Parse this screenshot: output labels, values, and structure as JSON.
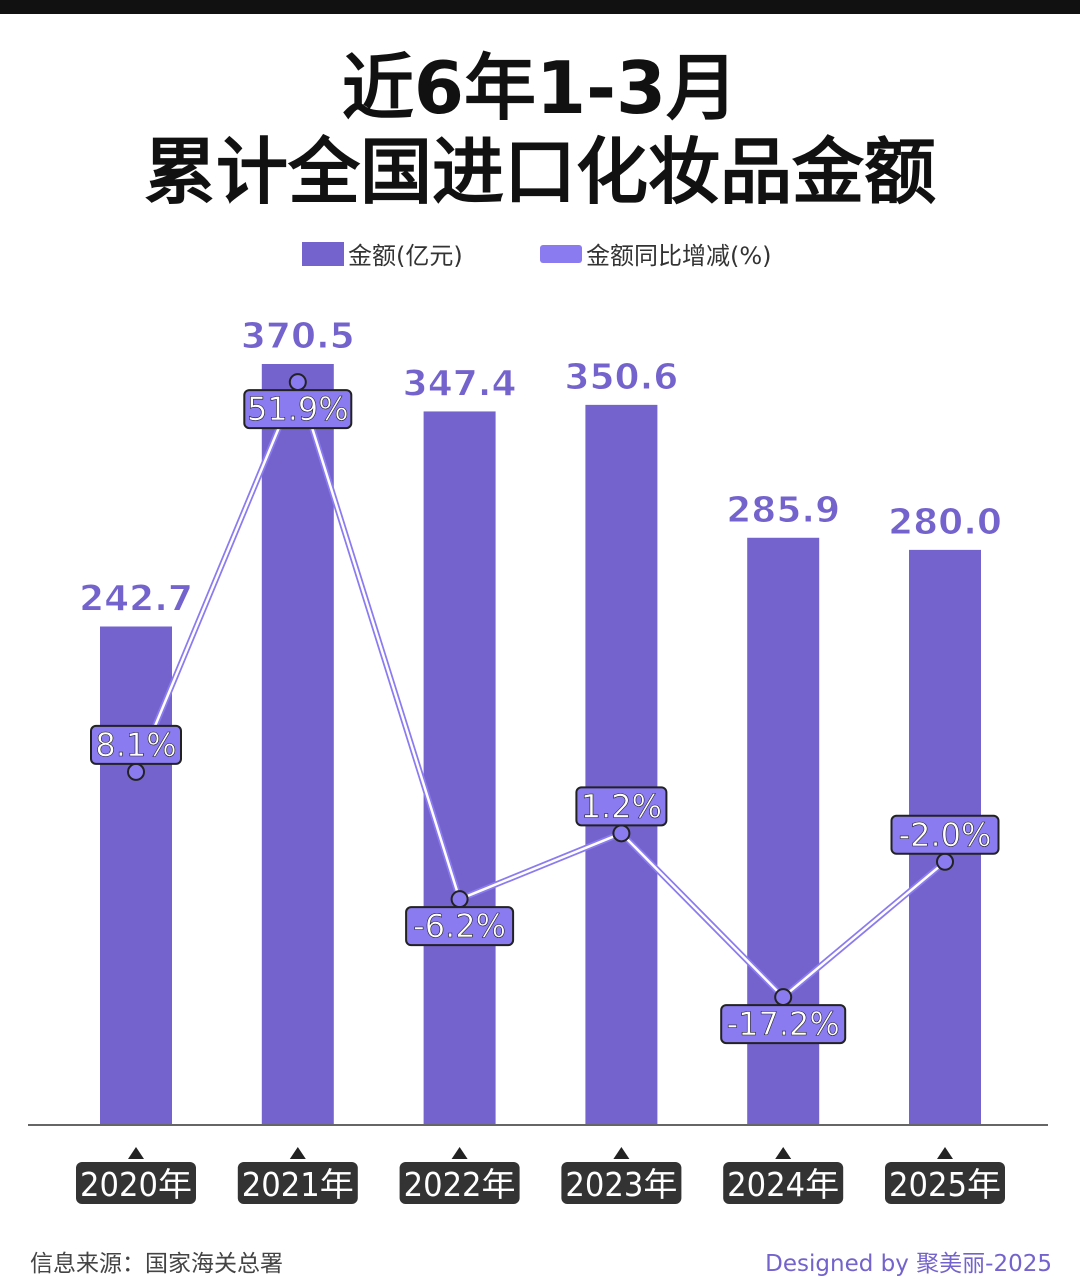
{
  "title_line1": "近6年1-3月",
  "title_line2": "累计全国进口化妆品金额",
  "legend": {
    "bar_label": "金额(亿元)",
    "line_label": "金额同比增减(%)"
  },
  "colors": {
    "bar": "#7463cc",
    "line_label_box": "#8a7bf0",
    "year_box": "#333333"
  },
  "chart_data": {
    "type": "bar+line",
    "categories": [
      "2020年",
      "2021年",
      "2022年",
      "2023年",
      "2024年",
      "2025年"
    ],
    "series": [
      {
        "name": "金额(亿元)",
        "type": "bar",
        "values": [
          242.7,
          370.5,
          347.4,
          350.6,
          285.9,
          280.0
        ],
        "labels": [
          "242.7",
          "370.5",
          "347.4",
          "350.6",
          "285.9",
          "280.0"
        ]
      },
      {
        "name": "金额同比增减(%)",
        "type": "line",
        "values": [
          8.1,
          51.9,
          -6.2,
          1.2,
          -17.2,
          -2.0
        ],
        "labels": [
          "8.1%",
          "51.9%",
          "-6.2%",
          "1.2%",
          "-17.2%",
          "-2.0%"
        ]
      }
    ],
    "legend_position": "top",
    "grid": false
  },
  "footer": {
    "source": "信息来源：国家海关总署",
    "designed_by": "Designed by 聚美丽-2025"
  }
}
